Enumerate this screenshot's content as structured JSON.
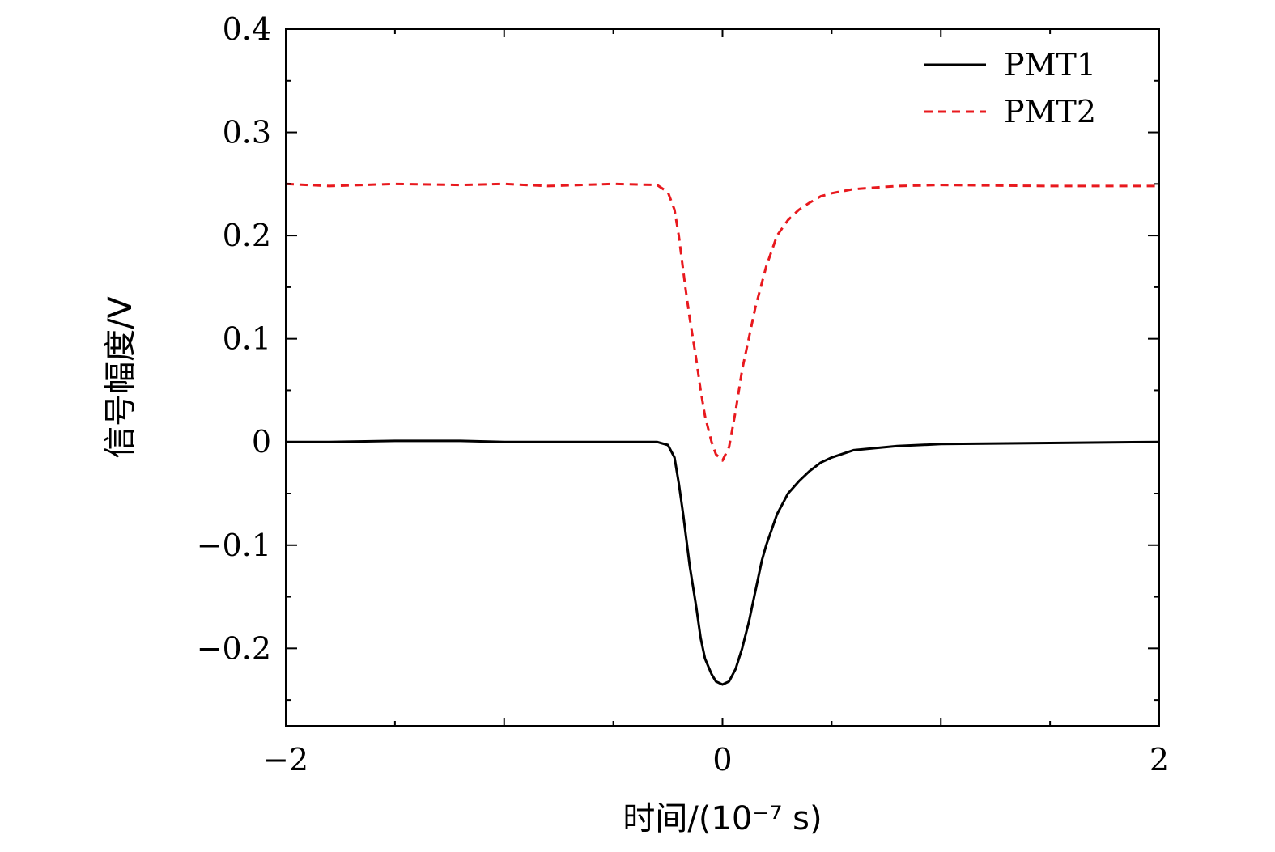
{
  "chart_data": {
    "type": "line",
    "title": "",
    "xlabel": "时间/(10⁻⁷ s)",
    "ylabel": "信号幅度/V",
    "xlim": [
      -2,
      2
    ],
    "ylim": [
      -0.275,
      0.4
    ],
    "x_ticks": [
      -2,
      0,
      2
    ],
    "x_tick_labels": [
      "−2",
      "0",
      "2"
    ],
    "y_ticks": [
      -0.2,
      -0.1,
      0,
      0.1,
      0.2,
      0.3,
      0.4
    ],
    "y_tick_labels": [
      "−0.2",
      "−0.1",
      "0",
      "0.1",
      "0.2",
      "0.3",
      "0.4"
    ],
    "grid": false,
    "legend_position": "top-right",
    "series": [
      {
        "name": "PMT1",
        "color": "#000000",
        "style": "solid",
        "x": [
          -2.0,
          -1.8,
          -1.5,
          -1.2,
          -1.0,
          -0.5,
          -0.3,
          -0.25,
          -0.22,
          -0.2,
          -0.18,
          -0.15,
          -0.12,
          -0.1,
          -0.08,
          -0.05,
          -0.03,
          0.0,
          0.03,
          0.06,
          0.09,
          0.12,
          0.15,
          0.18,
          0.2,
          0.25,
          0.3,
          0.35,
          0.4,
          0.45,
          0.5,
          0.6,
          0.8,
          1.0,
          1.5,
          2.0
        ],
        "values": [
          0.0,
          0.0,
          0.001,
          0.001,
          0.0,
          0.0,
          0.0,
          -0.003,
          -0.015,
          -0.04,
          -0.07,
          -0.12,
          -0.16,
          -0.19,
          -0.21,
          -0.225,
          -0.232,
          -0.235,
          -0.232,
          -0.22,
          -0.2,
          -0.175,
          -0.145,
          -0.115,
          -0.1,
          -0.07,
          -0.05,
          -0.038,
          -0.028,
          -0.02,
          -0.015,
          -0.008,
          -0.004,
          -0.002,
          -0.001,
          0.0
        ]
      },
      {
        "name": "PMT2",
        "color": "#e8191e",
        "style": "dashed",
        "x": [
          -2.0,
          -1.8,
          -1.5,
          -1.2,
          -1.0,
          -0.8,
          -0.5,
          -0.3,
          -0.25,
          -0.22,
          -0.2,
          -0.17,
          -0.15,
          -0.12,
          -0.1,
          -0.08,
          -0.05,
          -0.03,
          0.0,
          0.03,
          0.06,
          0.09,
          0.12,
          0.15,
          0.2,
          0.25,
          0.3,
          0.35,
          0.4,
          0.45,
          0.5,
          0.6,
          0.8,
          1.0,
          1.5,
          2.0
        ],
        "values": [
          0.25,
          0.248,
          0.25,
          0.249,
          0.25,
          0.248,
          0.25,
          0.249,
          0.242,
          0.225,
          0.2,
          0.15,
          0.12,
          0.08,
          0.05,
          0.025,
          0.0,
          -0.012,
          -0.018,
          -0.005,
          0.03,
          0.07,
          0.1,
          0.13,
          0.17,
          0.2,
          0.215,
          0.225,
          0.232,
          0.238,
          0.241,
          0.245,
          0.248,
          0.249,
          0.248,
          0.248
        ]
      }
    ]
  }
}
